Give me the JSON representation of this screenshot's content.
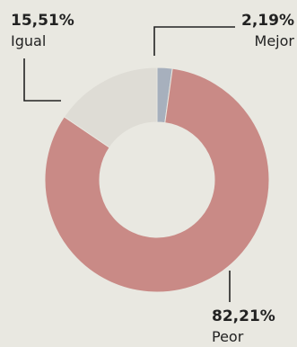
{
  "chart_data": {
    "type": "pie",
    "variant": "donut",
    "slices": [
      {
        "label": "Mejor",
        "value": 2.19,
        "display": "2,19%",
        "color": "#a7b0bd"
      },
      {
        "label": "Peor",
        "value": 82.21,
        "display": "82,21%",
        "color": "#c98a86"
      },
      {
        "label": "Igual",
        "value": 15.51,
        "display": "15,51%",
        "color": "#dedcd5"
      }
    ],
    "start": "top",
    "direction": "clockwise"
  }
}
